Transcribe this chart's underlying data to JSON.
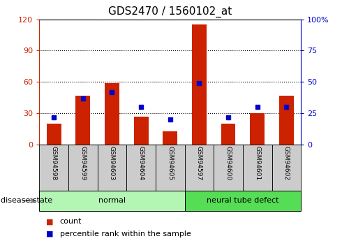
{
  "title": "GDS2470 / 1560102_at",
  "samples": [
    "GSM94598",
    "GSM94599",
    "GSM94603",
    "GSM94604",
    "GSM94605",
    "GSM94597",
    "GSM94600",
    "GSM94601",
    "GSM94602"
  ],
  "counts": [
    20,
    47,
    59,
    27,
    13,
    115,
    20,
    30,
    47
  ],
  "percentiles": [
    22,
    37,
    42,
    30,
    20,
    49,
    22,
    30,
    30
  ],
  "groups": [
    {
      "label": "normal",
      "start": 0,
      "end": 5,
      "color": "#b3f5b3"
    },
    {
      "label": "neural tube defect",
      "start": 5,
      "end": 9,
      "color": "#55dd55"
    }
  ],
  "left_ylim": [
    0,
    120
  ],
  "right_ylim": [
    0,
    100
  ],
  "left_yticks": [
    0,
    30,
    60,
    90,
    120
  ],
  "right_yticks": [
    0,
    25,
    50,
    75,
    100
  ],
  "right_yticklabels": [
    "0",
    "25",
    "50",
    "75",
    "100%"
  ],
  "bar_color": "#cc2200",
  "percentile_color": "#0000cc",
  "grid_color": "#000000",
  "tick_label_area_color": "#cccccc",
  "legend_count_label": "count",
  "legend_percentile_label": "percentile rank within the sample",
  "disease_state_label": "disease state",
  "title_fontsize": 11,
  "axis_fontsize": 8,
  "label_fontsize": 7.5
}
